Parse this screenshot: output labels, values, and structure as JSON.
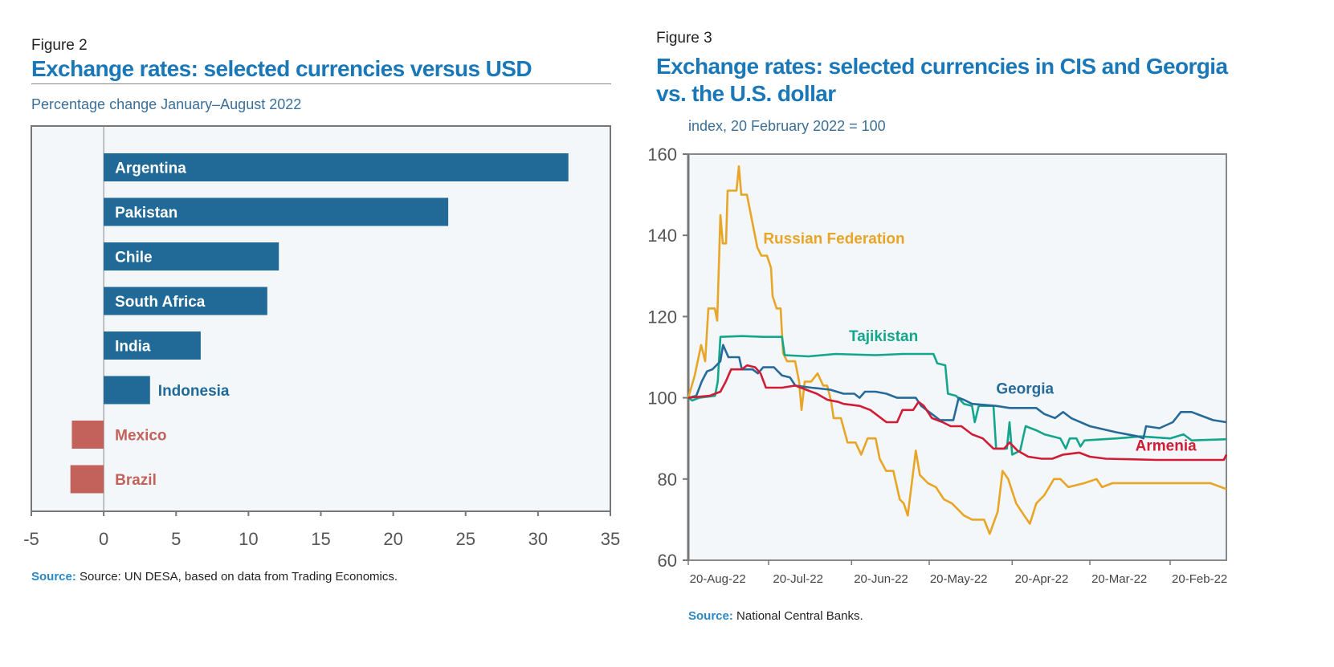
{
  "figure2": {
    "figure_label": "Figure 2",
    "title": "Exchange rates: selected currencies versus USD",
    "subtitle": "Percentage change January–August 2022",
    "source_label": "Source:",
    "source_text": "Source: UN DESA, based on data from Trading Economics."
  },
  "figure3": {
    "figure_label": "Figure 3",
    "title_line1": "Exchange rates: selected currencies in CIS and Georgia",
    "title_line2": "vs. the U.S. dollar",
    "subtitle": "index, 20 February 2022 = 100",
    "source_label": "Source:",
    "source_text": "National Central Banks."
  },
  "chart_data": [
    {
      "type": "bar",
      "orientation": "horizontal",
      "categories": [
        "Argentina",
        "Pakistan",
        "Chile",
        "South Africa",
        "India",
        "Indonesia",
        "Mexico",
        "Brazil"
      ],
      "values": [
        32.1,
        23.8,
        12.1,
        11.3,
        6.7,
        3.2,
        -2.2,
        -2.3
      ],
      "xlim": [
        -5,
        35
      ],
      "xticks": [
        -5,
        0,
        5,
        10,
        15,
        20,
        25,
        30,
        35
      ],
      "colors": {
        "positive": "#216a97",
        "negative": "#c2625a"
      }
    },
    {
      "type": "line",
      "xlabel_ticks": [
        {
          "day": 11,
          "label": "20-Aug-22"
        },
        {
          "day": 41,
          "label": "20-Jul-22"
        },
        {
          "day": 72,
          "label": "20-Jun-22"
        },
        {
          "day": 101,
          "label": "20-May-22"
        },
        {
          "day": 132,
          "label": "20-Apr-22"
        },
        {
          "day": 161,
          "label": "20-Mar-22"
        },
        {
          "day": 191,
          "label": "20-Feb-22"
        }
      ],
      "xlim": [
        0,
        201
      ],
      "ylim": [
        60,
        160
      ],
      "yticks": [
        60,
        80,
        100,
        120,
        140,
        160
      ],
      "series": [
        {
          "name": "Russian Federation",
          "color": "#e8a526",
          "label_at": [
            28,
            138
          ],
          "points": [
            [
              0,
              100
            ],
            [
              2.4,
              105.5
            ],
            [
              4.8,
              113
            ],
            [
              6.3,
              109
            ],
            [
              7.5,
              122
            ],
            [
              9.9,
              122
            ],
            [
              10.8,
              119
            ],
            [
              12,
              145
            ],
            [
              12.9,
              138
            ],
            [
              14.1,
              138
            ],
            [
              14.7,
              151
            ],
            [
              18,
              151
            ],
            [
              18.9,
              157
            ],
            [
              19.8,
              150
            ],
            [
              21.9,
              150
            ],
            [
              25.8,
              137
            ],
            [
              27.3,
              135
            ],
            [
              29.4,
              135
            ],
            [
              30.9,
              132
            ],
            [
              31.5,
              125
            ],
            [
              33,
              122
            ],
            [
              34.5,
              122
            ],
            [
              35.4,
              111
            ],
            [
              36.9,
              109
            ],
            [
              39.9,
              109
            ],
            [
              41.4,
              104
            ],
            [
              42.3,
              97
            ],
            [
              43.5,
              104
            ],
            [
              45.9,
              104
            ],
            [
              48.3,
              106
            ],
            [
              50.4,
              103
            ],
            [
              51.9,
              103
            ],
            [
              53.4,
              99
            ],
            [
              54.3,
              95
            ],
            [
              57,
              95
            ],
            [
              59.5,
              89
            ],
            [
              62.5,
              89
            ],
            [
              64.6,
              86
            ],
            [
              67,
              90
            ],
            [
              70,
              90
            ],
            [
              71.5,
              85
            ],
            [
              73.9,
              82
            ],
            [
              76.6,
              82
            ],
            [
              79,
              75
            ],
            [
              80.5,
              74
            ],
            [
              82,
              71
            ],
            [
              85,
              87
            ],
            [
              86.5,
              81
            ],
            [
              89.5,
              79
            ],
            [
              92.5,
              78
            ],
            [
              95.5,
              75
            ],
            [
              98.5,
              74
            ],
            [
              103,
              71
            ],
            [
              106,
              70
            ],
            [
              110.5,
              70
            ],
            [
              112.6,
              66.5
            ],
            [
              115.6,
              72
            ],
            [
              117.4,
              82
            ],
            [
              119.5,
              80
            ],
            [
              122.5,
              74
            ],
            [
              125.5,
              71
            ],
            [
              127.6,
              69
            ],
            [
              130,
              74
            ],
            [
              133,
              76
            ],
            [
              136.6,
              80
            ],
            [
              139,
              80
            ],
            [
              142,
              78
            ],
            [
              148,
              79
            ],
            [
              152.5,
              80
            ],
            [
              154.6,
              78
            ],
            [
              158.5,
              79
            ],
            [
              163,
              79
            ],
            [
              175,
              79
            ],
            [
              187,
              79
            ],
            [
              195,
              79
            ],
            [
              201,
              77.5
            ]
          ]
        },
        {
          "name": "Tajikistan",
          "color": "#14a68c",
          "label_at": [
            60,
            114
          ],
          "points": [
            [
              0,
              100
            ],
            [
              1.5,
              99.3
            ],
            [
              4,
              100
            ],
            [
              10,
              100.5
            ],
            [
              11,
              104
            ],
            [
              12,
              115
            ],
            [
              20,
              115.2
            ],
            [
              28,
              115
            ],
            [
              35,
              115
            ],
            [
              36,
              110.5
            ],
            [
              45,
              110.2
            ],
            [
              55,
              110.8
            ],
            [
              70,
              110.5
            ],
            [
              80,
              110.8
            ],
            [
              91.6,
              110.8
            ],
            [
              93,
              108.5
            ],
            [
              96,
              108
            ],
            [
              97,
              101
            ],
            [
              100,
              100.5
            ],
            [
              103,
              98.5
            ],
            [
              106,
              98
            ],
            [
              107,
              94
            ],
            [
              108.5,
              98
            ],
            [
              114,
              98
            ],
            [
              115,
              87.5
            ],
            [
              119,
              87.5
            ],
            [
              120,
              94
            ],
            [
              121,
              86
            ],
            [
              124,
              87
            ],
            [
              126,
              93
            ],
            [
              130,
              92
            ],
            [
              133,
              91
            ],
            [
              139,
              90
            ],
            [
              141,
              87.5
            ],
            [
              142.5,
              90
            ],
            [
              145,
              90
            ],
            [
              146.5,
              88
            ],
            [
              148,
              89.5
            ],
            [
              160,
              90
            ],
            [
              169,
              90.5
            ],
            [
              180,
              90
            ],
            [
              185,
              91
            ],
            [
              188,
              89.5
            ],
            [
              201,
              89.8
            ]
          ]
        },
        {
          "name": "Georgia",
          "color": "#266a9a",
          "label_at": [
            115,
            101
          ],
          "points": [
            [
              0,
              100
            ],
            [
              3,
              100.5
            ],
            [
              5,
              104
            ],
            [
              7,
              106.5
            ],
            [
              9,
              107
            ],
            [
              12,
              109
            ],
            [
              13,
              113
            ],
            [
              15,
              110
            ],
            [
              19,
              110
            ],
            [
              20,
              107
            ],
            [
              24,
              107
            ],
            [
              26,
              106
            ],
            [
              28,
              107.5
            ],
            [
              32,
              107.5
            ],
            [
              35,
              105.5
            ],
            [
              38,
              105
            ],
            [
              40,
              103
            ],
            [
              46,
              102.5
            ],
            [
              53,
              102
            ],
            [
              58,
              101
            ],
            [
              62,
              101
            ],
            [
              64,
              100
            ],
            [
              66,
              101.5
            ],
            [
              70,
              101.5
            ],
            [
              74,
              101
            ],
            [
              78,
              100
            ],
            [
              85,
              100
            ],
            [
              87,
              98
            ],
            [
              91,
              96
            ],
            [
              94,
              94.5
            ],
            [
              99,
              94.5
            ],
            [
              101,
              100
            ],
            [
              103,
              99.5
            ],
            [
              106,
              98.5
            ],
            [
              115,
              98
            ],
            [
              120,
              97.5
            ],
            [
              130,
              97.5
            ],
            [
              133,
              96
            ],
            [
              137,
              95
            ],
            [
              140,
              96.5
            ],
            [
              143,
              95
            ],
            [
              150,
              93
            ],
            [
              160,
              91.5
            ],
            [
              168,
              90.5
            ],
            [
              170,
              90
            ],
            [
              171,
              93
            ],
            [
              176,
              92.5
            ],
            [
              181,
              94
            ],
            [
              184,
              96.5
            ],
            [
              188,
              96.5
            ],
            [
              192,
              95.5
            ],
            [
              196,
              94.5
            ],
            [
              201,
              94
            ]
          ]
        },
        {
          "name": "Armenia",
          "color": "#d01c34",
          "label_at": [
            167,
            87
          ],
          "points": [
            [
              0,
              100
            ],
            [
              8,
              100.5
            ],
            [
              12,
              101.5
            ],
            [
              14,
              104
            ],
            [
              16,
              107
            ],
            [
              20,
              107
            ],
            [
              22,
              108
            ],
            [
              25,
              107.5
            ],
            [
              27,
              106
            ],
            [
              29,
              102.5
            ],
            [
              35,
              102.5
            ],
            [
              40,
              103
            ],
            [
              44,
              102
            ],
            [
              48,
              101
            ],
            [
              52,
              99.5
            ],
            [
              56,
              99
            ],
            [
              58,
              98.5
            ],
            [
              64,
              98
            ],
            [
              68,
              97
            ],
            [
              70,
              96
            ],
            [
              74,
              94
            ],
            [
              78,
              94
            ],
            [
              80,
              97
            ],
            [
              84,
              97
            ],
            [
              86,
              99
            ],
            [
              88,
              98
            ],
            [
              91,
              95
            ],
            [
              95,
              94
            ],
            [
              98,
              93
            ],
            [
              102,
              93
            ],
            [
              106,
              91
            ],
            [
              110,
              90
            ],
            [
              114,
              87.5
            ],
            [
              118,
              87.5
            ],
            [
              120,
              89
            ],
            [
              123,
              87
            ],
            [
              127,
              85.5
            ],
            [
              132,
              85
            ],
            [
              136,
              85
            ],
            [
              140,
              86
            ],
            [
              146,
              86.5
            ],
            [
              150,
              85.5
            ],
            [
              156,
              85
            ],
            [
              175,
              84.7
            ],
            [
              200,
              84.7
            ],
            [
              201,
              86
            ]
          ]
        }
      ]
    }
  ]
}
